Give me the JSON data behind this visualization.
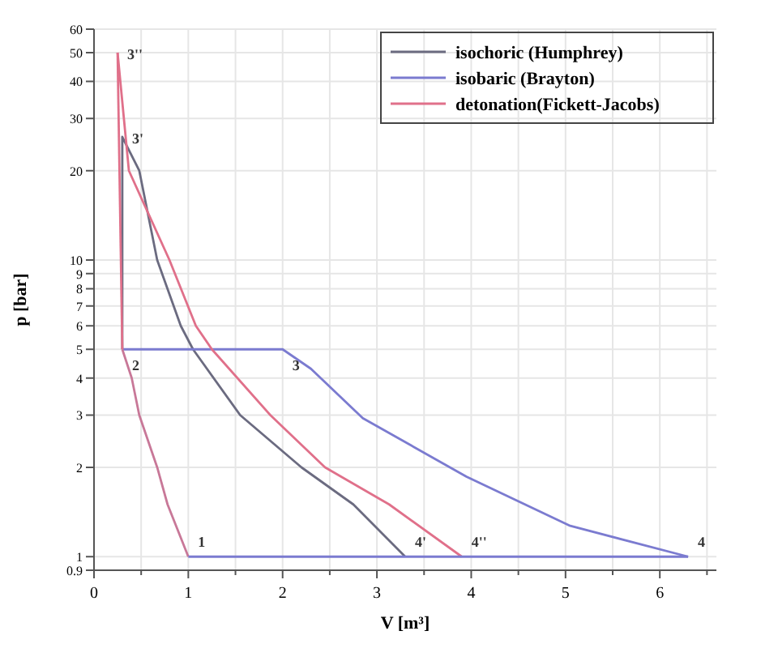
{
  "chart_data": {
    "type": "line",
    "xlabel": "V [m³]",
    "ylabel": "p [bar]",
    "log": "y",
    "grid": true,
    "legend": "top right",
    "marker": "none",
    "line_style": "solid",
    "xlim": [
      0,
      6.6
    ],
    "xticks": [
      0,
      {
        "value": 0.5,
        "label": null
      },
      1,
      {
        "value": 1.5,
        "label": null
      },
      2,
      {
        "value": 2.5,
        "label": null
      },
      3,
      {
        "value": 3.5,
        "label": null
      },
      4,
      {
        "value": 4.5,
        "label": null
      },
      5,
      {
        "value": 5.5,
        "label": null
      },
      6,
      {
        "value": 6.5,
        "label": null
      }
    ],
    "ylim": [
      0.9,
      60
    ],
    "yticks": [
      0.9,
      1,
      2,
      3,
      4,
      5,
      6,
      7,
      8,
      9,
      10,
      20,
      30,
      40,
      50,
      60
    ],
    "series": [
      {
        "name": "isochoric (Humphrey)",
        "color": "#6b6b80",
        "x": [
          0.3,
          0.3,
          0.48,
          0.67,
          0.92,
          1.05,
          1.55,
          2.2,
          2.75,
          3.3
        ],
        "values": [
          5,
          26,
          20,
          10,
          6,
          5,
          3,
          2,
          1.5,
          1
        ]
      },
      {
        "name": "isobaric (Brayton)",
        "color": "#7b7bd0",
        "x": [
          0.3,
          2,
          2.3,
          2.85,
          3.95,
          5.05,
          6.3
        ],
        "values": [
          5,
          5,
          4.3,
          2.93,
          1.86,
          1.27,
          1
        ]
      },
      {
        "name": "detonation(Fickett-Jacobs)",
        "color": "#e0708a",
        "x": [
          0.25,
          0.37,
          0.8,
          1.08,
          1.25,
          1.87,
          2.45,
          3.13,
          3.9
        ],
        "values": [
          50,
          20,
          10,
          6,
          5,
          3,
          2,
          1.5,
          1
        ]
      },
      {
        "color": "#e0708a",
        "x": [
          0.25,
          0.3
        ],
        "values": [
          50,
          5
        ]
      },
      {
        "color": "#c87898",
        "x": [
          0.3,
          0.4,
          0.48,
          0.67,
          0.78,
          1
        ],
        "values": [
          5,
          4,
          3,
          2,
          1.5,
          1
        ]
      },
      {
        "color": "#7b7bd0",
        "x": [
          1,
          6.3
        ],
        "values": [
          1,
          1
        ]
      }
    ],
    "annotations": [
      {
        "text": "1",
        "x": 1,
        "y": 1
      },
      {
        "text": "2",
        "x": 0.3,
        "y": 5
      },
      {
        "text": "3",
        "x": 2,
        "y": 5
      },
      {
        "text": "3'",
        "x": 0.3,
        "y": 26
      },
      {
        "text": "3''",
        "x": 0.25,
        "y": 50
      },
      {
        "text": "4'",
        "x": 3.3,
        "y": 1
      },
      {
        "text": "4''",
        "x": 3.9,
        "y": 1
      },
      {
        "text": "4",
        "x": 6.3,
        "y": 1
      }
    ]
  }
}
